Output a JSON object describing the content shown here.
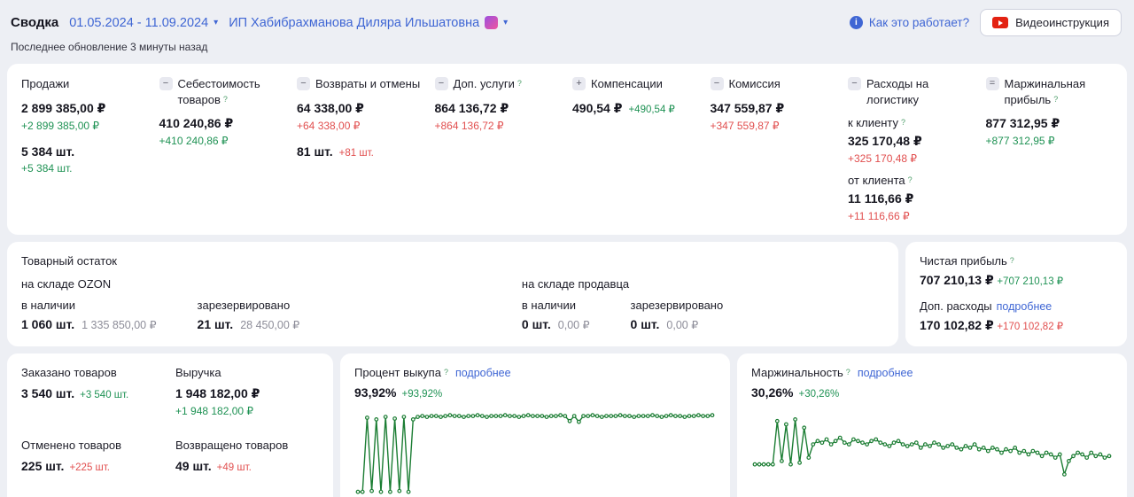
{
  "header": {
    "title": "Сводка",
    "date_range": "01.05.2024 - 11.09.2024",
    "seller": "ИП Хабибрахманова Диляра Ильшатовна",
    "how_it_works": "Как это работает?",
    "video_button": "Видеоинструкция",
    "last_update": "Последнее обновление 3 минуты назад"
  },
  "metrics": {
    "sales": {
      "title": "Продажи",
      "value": "2 899 385,00 ₽",
      "delta": "+2 899 385,00 ₽",
      "qty": "5 384 шт.",
      "qty_delta": "+5 384 шт."
    },
    "cost": {
      "prefix": "−",
      "title": "Себестоимость товаров",
      "value": "410 240,86 ₽",
      "delta": "+410 240,86 ₽"
    },
    "returns": {
      "prefix": "−",
      "title": "Возвраты и отмены",
      "value": "64 338,00 ₽",
      "delta": "+64 338,00 ₽",
      "qty": "81 шт.",
      "qty_delta": "+81 шт."
    },
    "services": {
      "prefix": "−",
      "title": "Доп. услуги",
      "value": "864 136,72 ₽",
      "delta": "+864 136,72 ₽"
    },
    "compensation": {
      "prefix": "+",
      "title": "Компенсации",
      "value": "490,54 ₽",
      "delta": "+490,54 ₽"
    },
    "commission": {
      "prefix": "−",
      "title": "Комиссия",
      "value": "347 559,87 ₽",
      "delta": "+347 559,87 ₽"
    },
    "logistics": {
      "prefix": "−",
      "title": "Расходы на логистику",
      "to_client_label": "к клиенту",
      "to_client_value": "325 170,48 ₽",
      "to_client_delta": "+325 170,48 ₽",
      "from_client_label": "от клиента",
      "from_client_value": "11 116,66 ₽",
      "from_client_delta": "+11 116,66 ₽"
    },
    "margin": {
      "prefix": "=",
      "title": "Маржинальная прибыль",
      "value": "877 312,95 ₽",
      "delta": "+877 312,95 ₽"
    }
  },
  "inventory": {
    "title": "Товарный остаток",
    "ozon": {
      "label": "на складе OZON",
      "in_stock_label": "в наличии",
      "in_stock_qty": "1 060 шт.",
      "in_stock_sum": "1 335 850,00 ₽",
      "reserved_label": "зарезервировано",
      "reserved_qty": "21 шт.",
      "reserved_sum": "28 450,00 ₽"
    },
    "seller": {
      "label": "на складе продавца",
      "in_stock_label": "в наличии",
      "in_stock_qty": "0 шт.",
      "in_stock_sum": "0,00 ₽",
      "reserved_label": "зарезервировано",
      "reserved_qty": "0 шт.",
      "reserved_sum": "0,00 ₽"
    }
  },
  "net_profit": {
    "title": "Чистая прибыль",
    "value": "707 210,13 ₽",
    "delta": "+707 210,13 ₽",
    "expenses_label": "Доп. расходы",
    "details_link": "подробнее",
    "expenses_value": "170 102,82 ₽",
    "expenses_delta": "+170 102,82 ₽"
  },
  "orders": {
    "ordered_label": "Заказано товаров",
    "ordered_qty": "3 540 шт.",
    "ordered_delta": "+3 540 шт.",
    "revenue_label": "Выручка",
    "revenue_value": "1 948 182,00 ₽",
    "revenue_delta": "+1 948 182,00 ₽",
    "cancelled_label": "Отменено товаров",
    "cancelled_qty": "225 шт.",
    "cancelled_delta": "+225 шт.",
    "returned_label": "Возвращено товаров",
    "returned_qty": "49 шт.",
    "returned_delta": "+49 шт."
  },
  "buyout": {
    "title": "Процент выкупа",
    "details": "подробнее",
    "value": "93,92%",
    "delta": "+93,92%"
  },
  "marginality": {
    "title": "Маржинальность",
    "details": "подробнее",
    "value": "30,26%",
    "delta": "+30,26%"
  },
  "colors": {
    "accent_blue": "#3f66d4",
    "green": "#1f9254",
    "red": "#e14f4f",
    "chart_green": "#1b7d33"
  },
  "chart_data": [
    {
      "type": "line",
      "title": "Процент выкупа",
      "xlabel": "",
      "ylabel": "%",
      "ylim": [
        0,
        100
      ],
      "grid": false,
      "legend": "none",
      "color": "#1b7d33",
      "values": [
        3,
        3,
        92,
        4,
        90,
        3,
        93,
        3,
        91,
        4,
        93,
        3,
        90,
        93,
        94,
        93,
        94,
        94,
        93,
        94,
        95,
        94,
        94,
        93,
        94,
        94,
        95,
        94,
        93,
        94,
        94,
        94,
        95,
        94,
        94,
        93,
        94,
        95,
        94,
        94,
        94,
        93,
        94,
        94,
        95,
        94,
        88,
        94,
        87,
        94,
        94,
        95,
        94,
        93,
        94,
        94,
        94,
        95,
        94,
        94,
        93,
        94,
        94,
        94,
        95,
        94,
        93,
        94,
        95,
        94,
        94,
        93,
        94,
        94,
        95,
        94,
        94,
        95
      ]
    },
    {
      "type": "line",
      "title": "Маржинальность",
      "xlabel": "",
      "ylabel": "%",
      "ylim": [
        0,
        50
      ],
      "grid": false,
      "legend": "none",
      "color": "#1b7d33",
      "values": [
        18,
        18,
        18,
        18,
        18,
        44,
        20,
        42,
        18,
        45,
        19,
        40,
        22,
        30,
        32,
        31,
        33,
        30,
        32,
        34,
        31,
        30,
        33,
        32,
        31,
        30,
        32,
        33,
        31,
        30,
        29,
        31,
        32,
        30,
        29,
        30,
        31,
        28,
        30,
        29,
        31,
        30,
        28,
        29,
        30,
        28,
        27,
        29,
        28,
        30,
        27,
        28,
        26,
        28,
        27,
        25,
        27,
        26,
        28,
        25,
        26,
        24,
        26,
        25,
        23,
        25,
        24,
        22,
        24,
        12,
        20,
        23,
        25,
        24,
        22,
        25,
        23,
        24,
        22,
        23
      ]
    }
  ]
}
